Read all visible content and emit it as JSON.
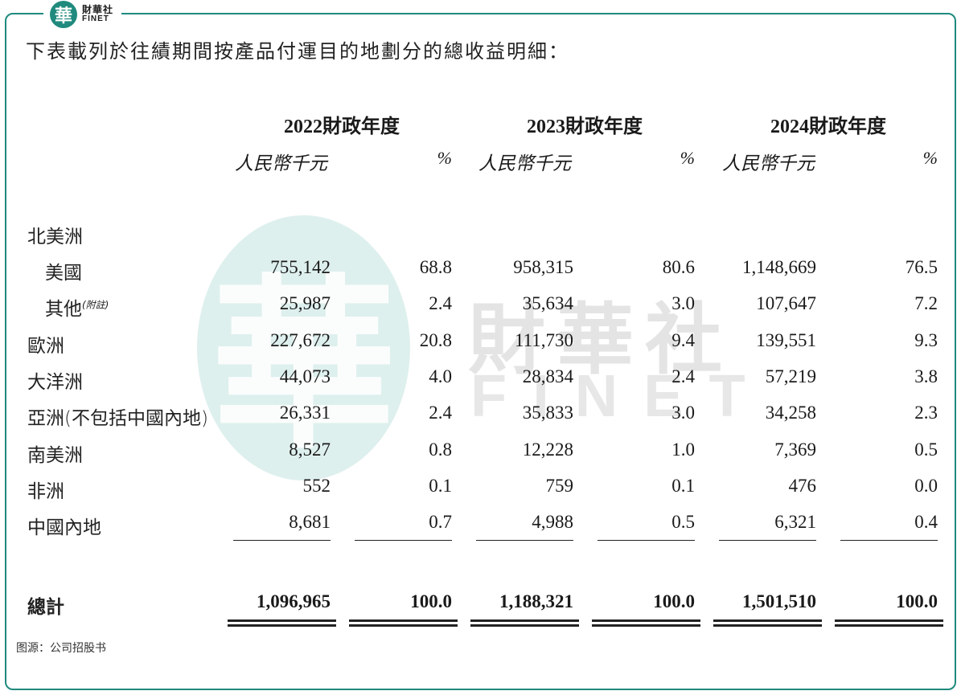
{
  "brand": {
    "logo_char": "華",
    "name_cn": "財華社",
    "name_en": "FINET"
  },
  "intro": "下表載列於往績期間按產品付運目的地劃分的總收益明細：",
  "headers": {
    "years": [
      "2022財政年度",
      "2023財政年度",
      "2024財政年度"
    ],
    "unit": "人民幣千元",
    "pct": "%"
  },
  "rows": [
    {
      "label": "北美洲",
      "note": "",
      "values": [
        "",
        "",
        "",
        "",
        "",
        ""
      ]
    },
    {
      "label": "美國",
      "note": "",
      "values": [
        "755,142",
        "68.8",
        "958,315",
        "80.6",
        "1,148,669",
        "76.5"
      ]
    },
    {
      "label": "其他",
      "note": "(附註)",
      "values": [
        "25,987",
        "2.4",
        "35,634",
        "3.0",
        "107,647",
        "7.2"
      ]
    },
    {
      "label": "歐洲",
      "note": "",
      "values": [
        "227,672",
        "20.8",
        "111,730",
        "9.4",
        "139,551",
        "9.3"
      ]
    },
    {
      "label": "大洋洲",
      "note": "",
      "values": [
        "44,073",
        "4.0",
        "28,834",
        "2.4",
        "57,219",
        "3.8"
      ]
    },
    {
      "label": "亞洲(不包括中國內地)",
      "note": "",
      "values": [
        "26,331",
        "2.4",
        "35,833",
        "3.0",
        "34,258",
        "2.3"
      ]
    },
    {
      "label": "南美洲",
      "note": "",
      "values": [
        "8,527",
        "0.8",
        "12,228",
        "1.0",
        "7,369",
        "0.5"
      ]
    },
    {
      "label": "非洲",
      "note": "",
      "values": [
        "552",
        "0.1",
        "759",
        "0.1",
        "476",
        "0.0"
      ]
    },
    {
      "label": "中國內地",
      "note": "",
      "values": [
        "8,681",
        "0.7",
        "4,988",
        "0.5",
        "6,321",
        "0.4"
      ]
    }
  ],
  "total": {
    "label": "總計",
    "values": [
      "1,096,965",
      "100.0",
      "1,188,321",
      "100.0",
      "1,501,510",
      "100.0"
    ]
  },
  "watermark": {
    "cn": "財華社",
    "en": "FINET",
    "char": "華"
  },
  "source": "图源：公司招股书",
  "colors": {
    "brand": "#1f8a7d",
    "watermark": "#d3ebe7"
  }
}
